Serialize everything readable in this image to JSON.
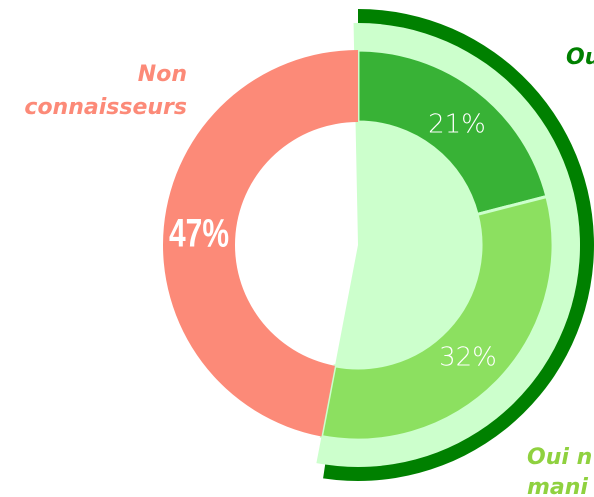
{
  "chart_data": {
    "type": "donut",
    "categories": [
      [
        "Ou"
      ],
      [
        "Oui n",
        "mani"
      ],
      [
        "Non",
        "connaisseurs"
      ]
    ],
    "values": [
      21,
      32,
      47
    ],
    "value_labels": [
      "21%",
      "32%",
      "47%"
    ],
    "colors": [
      "#38b236",
      "#8ce060",
      "#fc8a78"
    ],
    "label_colors": [
      "#008000",
      "#8fd13f",
      "#fc8a78"
    ]
  }
}
